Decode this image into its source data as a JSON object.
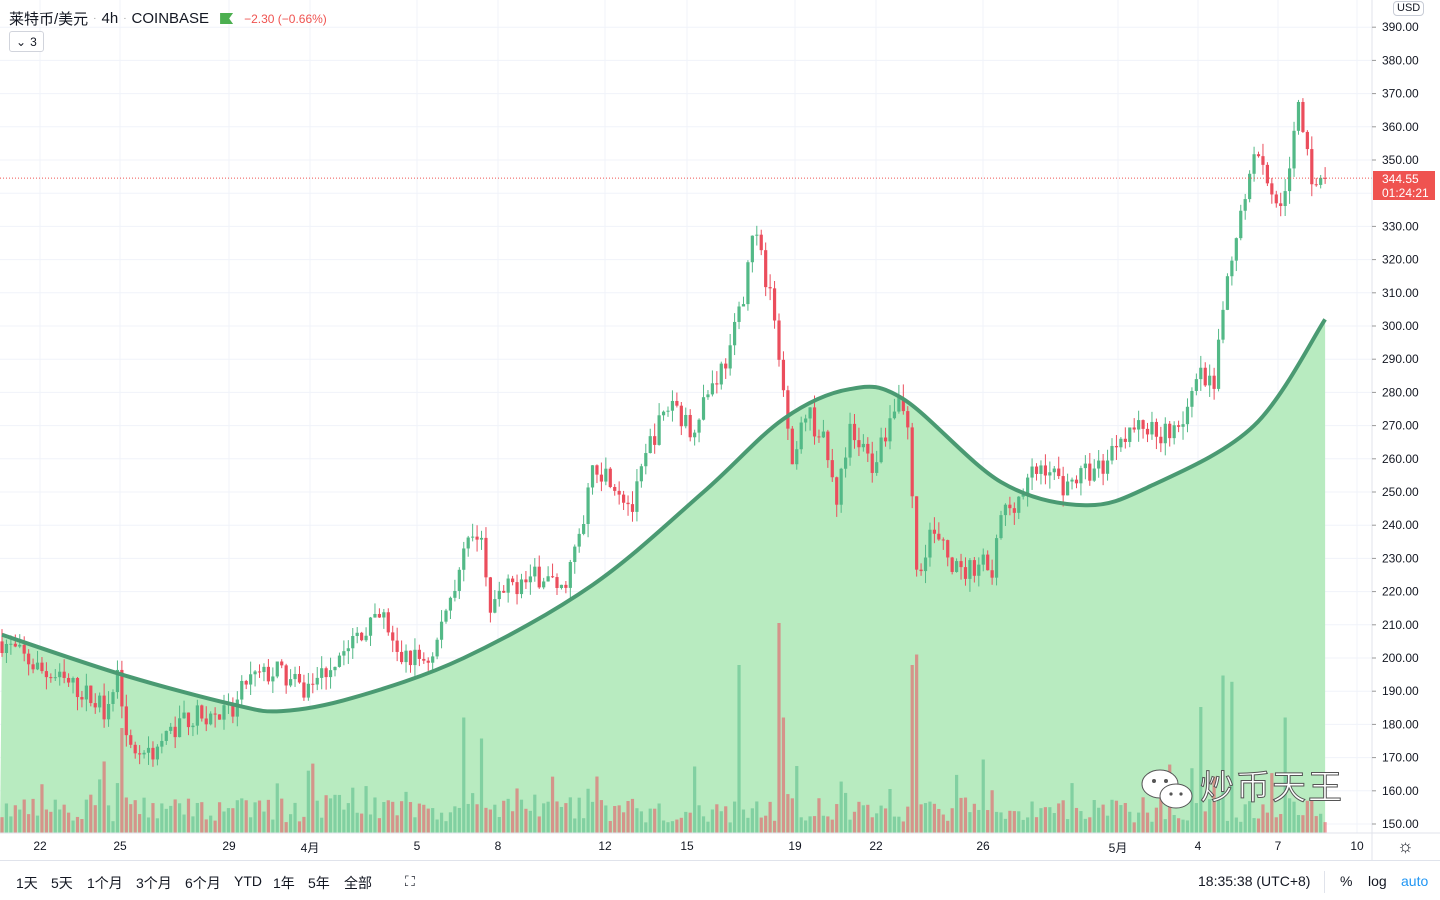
{
  "header": {
    "symbol": "莱特币/美元",
    "interval": "4h",
    "exchange": "COINBASE",
    "change": "−2.30 (−0.66%)",
    "indicators_count": "3"
  },
  "price_axis": {
    "currency": "USD",
    "labels": [
      "390.00",
      "380.00",
      "370.00",
      "360.00",
      "350.00",
      "330.00",
      "320.00",
      "310.00",
      "300.00",
      "290.00",
      "280.00",
      "270.00",
      "260.00",
      "250.00",
      "240.00",
      "230.00",
      "220.00",
      "210.00",
      "200.00",
      "190.00",
      "180.00",
      "170.00",
      "160.00",
      "150.00"
    ],
    "last_price": "344.55",
    "countdown": "01:24:21"
  },
  "time_axis": {
    "labels": [
      "22",
      "25",
      "29",
      "4月",
      "5",
      "8",
      "12",
      "15",
      "19",
      "22",
      "26",
      "5月",
      "4",
      "7",
      "10"
    ]
  },
  "bottom_bar": {
    "ranges": [
      "1天",
      "5天",
      "1个月",
      "3个月",
      "6个月",
      "YTD",
      "1年",
      "5年",
      "全部"
    ],
    "clock": "18:35:38 (UTC+8)",
    "percent": "%",
    "log": "log",
    "auto": "auto"
  },
  "watermark": "炒币天王",
  "colors": {
    "up": "#53b987",
    "down": "#eb4d5c",
    "area_fill": "#b8ebc0",
    "area_line": "#4a9a72",
    "last_price": "#ef5350",
    "auto": "#2196f3"
  },
  "chart_data": {
    "type": "candlestick",
    "bars": 299,
    "price_range": [
      150,
      390
    ],
    "price_path": [
      [
        0,
        205
      ],
      [
        9,
        196
      ],
      [
        18,
        190
      ],
      [
        23,
        185
      ],
      [
        26,
        195
      ],
      [
        27,
        188
      ],
      [
        29,
        172
      ],
      [
        34,
        172
      ],
      [
        41,
        182
      ],
      [
        52,
        183
      ],
      [
        55,
        193
      ],
      [
        62,
        196
      ],
      [
        68,
        190
      ],
      [
        74,
        198
      ],
      [
        81,
        208
      ],
      [
        86,
        212
      ],
      [
        89,
        200
      ],
      [
        97,
        200
      ],
      [
        100,
        215
      ],
      [
        105,
        235
      ],
      [
        108,
        238
      ],
      [
        110,
        215
      ],
      [
        115,
        222
      ],
      [
        122,
        225
      ],
      [
        126,
        220
      ],
      [
        131,
        240
      ],
      [
        133,
        258
      ],
      [
        137,
        255
      ],
      [
        142,
        245
      ],
      [
        146,
        265
      ],
      [
        151,
        278
      ],
      [
        155,
        268
      ],
      [
        158,
        278
      ],
      [
        164,
        292
      ],
      [
        167,
        310
      ],
      [
        169,
        330
      ],
      [
        171,
        320
      ],
      [
        173,
        310
      ],
      [
        176,
        280
      ],
      [
        178,
        255
      ],
      [
        181,
        275
      ],
      [
        185,
        265
      ],
      [
        188,
        248
      ],
      [
        191,
        268
      ],
      [
        196,
        258
      ],
      [
        198,
        265
      ],
      [
        202,
        280
      ],
      [
        204,
        270
      ],
      [
        206,
        225
      ],
      [
        209,
        238
      ],
      [
        216,
        225
      ],
      [
        221,
        230
      ],
      [
        223,
        225
      ],
      [
        225,
        243
      ],
      [
        230,
        250
      ],
      [
        232,
        255
      ],
      [
        235,
        258
      ],
      [
        239,
        252
      ],
      [
        243,
        255
      ],
      [
        248,
        258
      ],
      [
        252,
        268
      ],
      [
        257,
        270
      ],
      [
        261,
        268
      ],
      [
        266,
        272
      ],
      [
        270,
        285
      ],
      [
        273,
        280
      ],
      [
        275,
        305
      ],
      [
        278,
        325
      ],
      [
        282,
        355
      ],
      [
        285,
        345
      ],
      [
        288,
        335
      ],
      [
        292,
        365
      ],
      [
        295,
        345
      ],
      [
        298,
        344.55
      ]
    ],
    "curve": [
      [
        0,
        207
      ],
      [
        27,
        195
      ],
      [
        52,
        186
      ],
      [
        63,
        184
      ],
      [
        79,
        188
      ],
      [
        104,
        200
      ],
      [
        133,
        222
      ],
      [
        158,
        250
      ],
      [
        176,
        272
      ],
      [
        191,
        281
      ],
      [
        203,
        278
      ],
      [
        225,
        253
      ],
      [
        244,
        246
      ],
      [
        259,
        252
      ],
      [
        282,
        270
      ],
      [
        298,
        302
      ]
    ],
    "volume_spikes": [
      [
        27,
        0.5
      ],
      [
        104,
        0.55
      ],
      [
        108,
        0.45
      ],
      [
        166,
        0.8
      ],
      [
        175,
        1.0
      ],
      [
        176,
        0.55
      ],
      [
        205,
        0.8
      ],
      [
        206,
        0.85
      ],
      [
        221,
        0.35
      ],
      [
        270,
        0.6
      ],
      [
        275,
        0.75
      ],
      [
        277,
        0.72
      ],
      [
        289,
        0.55
      ]
    ]
  }
}
